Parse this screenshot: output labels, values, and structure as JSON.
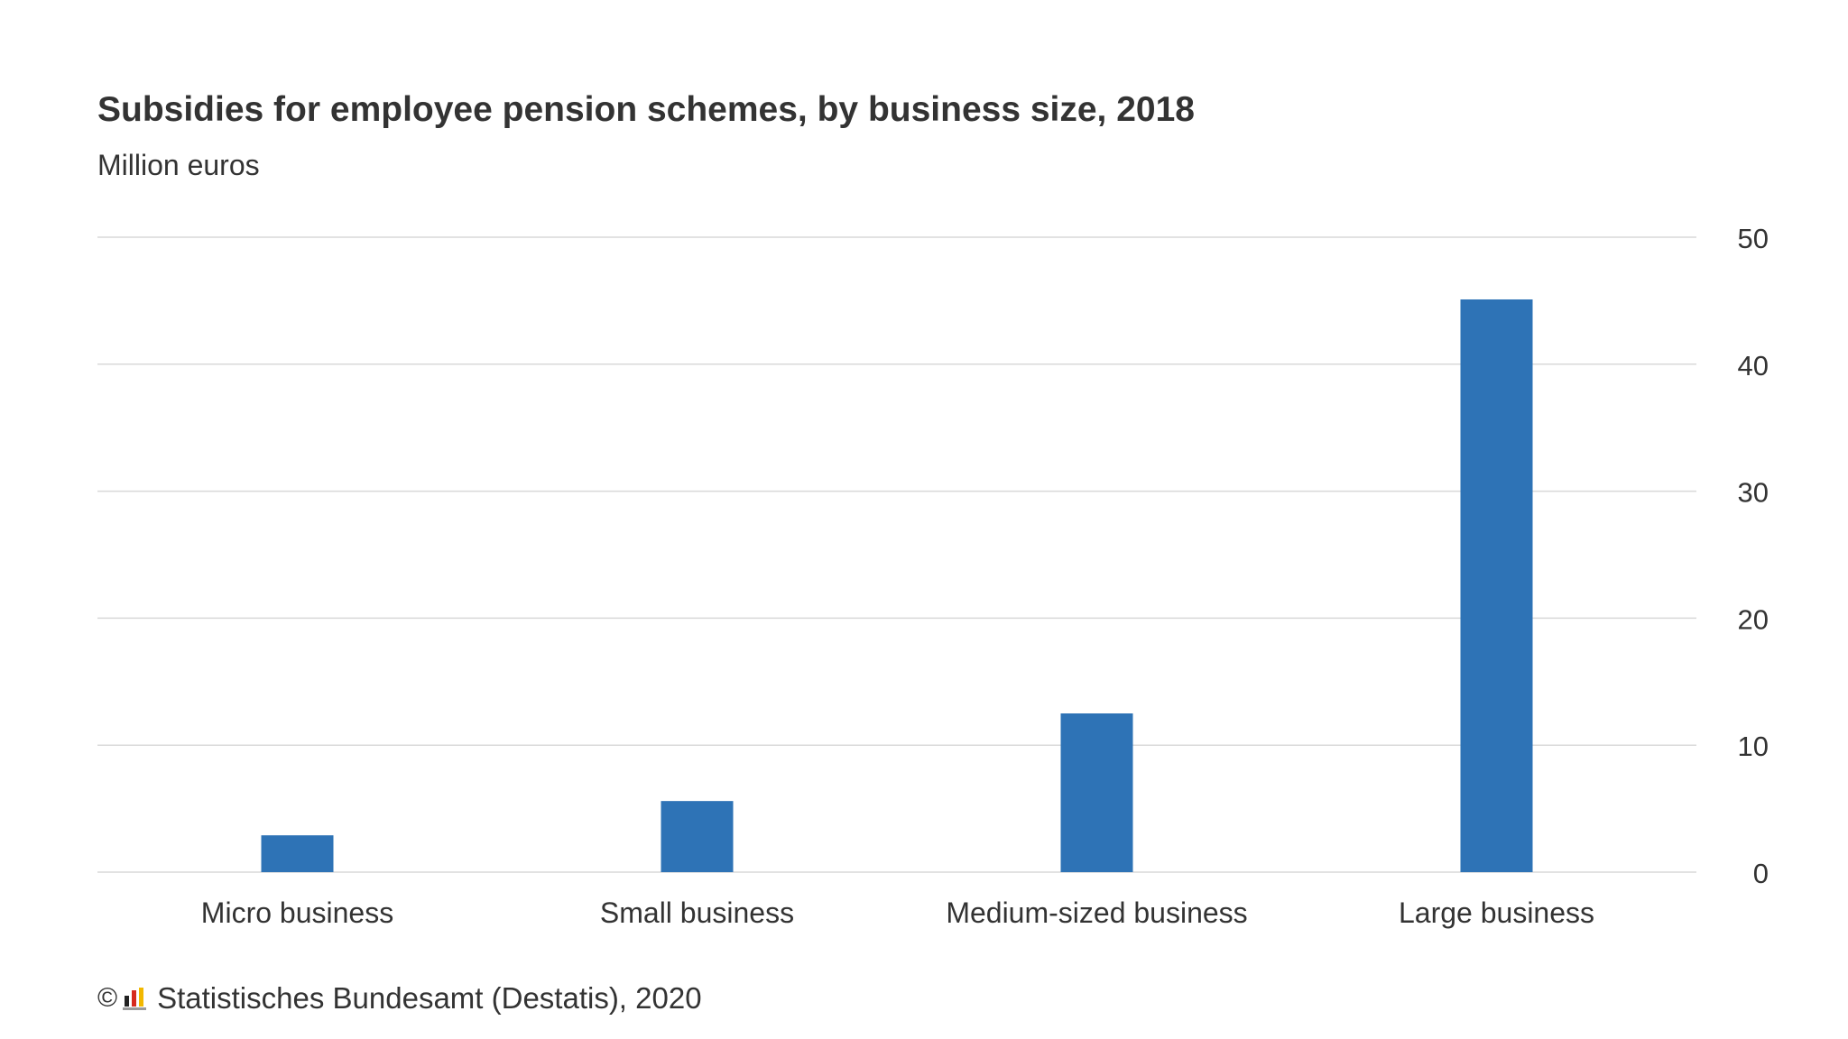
{
  "title": "Subsidies for employee pension schemes, by business size, 2018",
  "subtitle": "Million euros",
  "footer": {
    "copyright_symbol": "©",
    "source": "Statistisches Bundesamt (Destatis), 2020",
    "logo_icon": "destatis-logo-icon"
  },
  "colors": {
    "bar": "#2e73b6",
    "grid": "#d9d9d9",
    "text": "#333333"
  },
  "chart_data": {
    "type": "bar",
    "title": "Subsidies for employee pension schemes, by business size, 2018",
    "ylabel": "Million euros",
    "xlabel": "",
    "categories": [
      "Micro business",
      "Small business",
      "Medium-sized business",
      "Large business"
    ],
    "values": [
      2.9,
      5.6,
      12.5,
      45.1
    ],
    "ylim": [
      0,
      50
    ],
    "yticks": [
      0,
      10,
      20,
      30,
      40,
      50
    ],
    "y_axis_side": "right",
    "grid": true,
    "legend": "none"
  }
}
